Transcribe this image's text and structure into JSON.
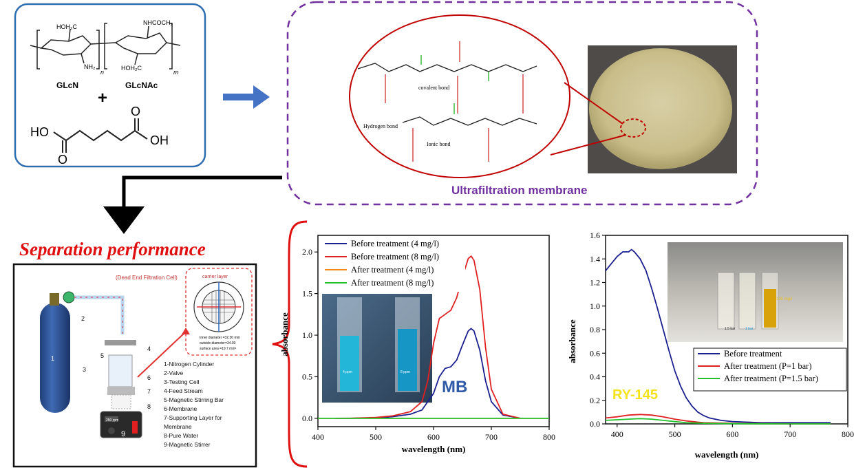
{
  "panels": {
    "reactants": {
      "glcn_label": "GLcN",
      "glcnac_label": "GLcNAc",
      "plus": "+",
      "hoh2c": "HOH₂C",
      "nh2": "NH₂",
      "nhcoch3": "NHCOCH₃",
      "hoh2c_b": "HOH₂C",
      "sub_n": "n",
      "sub_m": "m",
      "adipic_ho": "HO",
      "adipic_oh": "OH",
      "adipic_o1": "O",
      "adipic_o2": "O"
    },
    "membrane": {
      "title": "Ultrafiltration membrane",
      "covalent_bond": "covalent bond",
      "hydrogen_bond": "Hydrogen bond",
      "ionic_bond": "Ionic bond"
    },
    "separation": {
      "title": "Separation performance",
      "cell_title": "(Dead End Filtration Cell)",
      "carrier_layer": "carrier layer",
      "dims": [
        "Inner diameter =32.30 mm",
        "outside diameter=34.03",
        "surface area =19.7 mm²"
      ],
      "legend": [
        "1-Nitrogen Cylinder",
        "2-Valve",
        "3-Testing Cell",
        "4-Feed Stream",
        "5-Magnetic Stirring Bar",
        "6-Membrane",
        "7-Supporting Layer for",
        "Membrane",
        "8-Pure Water",
        "9-Magnetic Stirrer"
      ],
      "numbers": [
        "1",
        "2",
        "3",
        "4",
        "5",
        "6",
        "7",
        "8",
        "9"
      ],
      "stirrer_display": "250 rpm"
    }
  },
  "chart_data": [
    {
      "type": "line",
      "annotation": "MB",
      "photo_labels": [
        "4 ppm",
        "8 ppm"
      ],
      "xlabel": "wavelength (nm)",
      "ylabel": "absorbance",
      "xlim": [
        400,
        800
      ],
      "ylim": [
        -0.1,
        2.2
      ],
      "xticks": [
        400,
        500,
        600,
        700,
        800
      ],
      "yticks": [
        0.0,
        0.5,
        1.0,
        1.5,
        2.0
      ],
      "legend_position": "top-left",
      "series": [
        {
          "name": "Before treatment (4 mg/l)",
          "color": "#1a1f8f",
          "x": [
            430,
            460,
            500,
            530,
            560,
            580,
            600,
            610,
            620,
            630,
            640,
            650,
            660,
            665,
            670,
            680,
            690,
            700,
            720,
            750
          ],
          "y": [
            0,
            0,
            0.005,
            0.02,
            0.05,
            0.1,
            0.3,
            0.5,
            0.6,
            0.62,
            0.7,
            0.88,
            1.05,
            1.08,
            1.05,
            0.82,
            0.45,
            0.2,
            0.04,
            0
          ]
        },
        {
          "name": "Before treatment (8 mg/l)",
          "color": "#e02020",
          "x": [
            430,
            460,
            500,
            530,
            560,
            580,
            590,
            600,
            610,
            620,
            630,
            640,
            650,
            660,
            665,
            670,
            680,
            690,
            700,
            720,
            750
          ],
          "y": [
            0,
            0.002,
            0.01,
            0.03,
            0.08,
            0.2,
            0.45,
            0.9,
            1.2,
            1.25,
            1.3,
            1.45,
            1.7,
            1.92,
            1.95,
            1.9,
            1.55,
            0.85,
            0.35,
            0.05,
            0
          ]
        },
        {
          "name": "After treatment (4 mg/l)",
          "color": "#f08c1e",
          "x": [
            400,
            800
          ],
          "y": [
            0,
            0
          ]
        },
        {
          "name": "After treatment (8 mg/l)",
          "color": "#22c02a",
          "x": [
            400,
            800
          ],
          "y": [
            0,
            0
          ]
        }
      ]
    },
    {
      "type": "line",
      "annotation": "RY-145",
      "photo_labels": [
        "1.5 bar",
        "1 bar",
        "100 mg/l"
      ],
      "xlabel": "wavelength (nm)",
      "ylabel": "absorbance",
      "xlim": [
        380,
        800
      ],
      "ylim": [
        0,
        1.6
      ],
      "xticks": [
        400,
        500,
        600,
        700,
        800
      ],
      "yticks": [
        0.0,
        0.2,
        0.4,
        0.6,
        0.8,
        1.0,
        1.2,
        1.4,
        1.6
      ],
      "legend_position": "bottom-right",
      "series": [
        {
          "name": "Before treatment",
          "color": "#1a1f8f",
          "x": [
            380,
            390,
            400,
            410,
            420,
            425,
            430,
            440,
            450,
            460,
            470,
            480,
            490,
            500,
            510,
            520,
            530,
            540,
            550,
            560,
            580,
            600,
            650,
            700,
            770
          ],
          "y": [
            1.3,
            1.36,
            1.42,
            1.46,
            1.46,
            1.48,
            1.46,
            1.4,
            1.3,
            1.15,
            0.98,
            0.8,
            0.62,
            0.45,
            0.32,
            0.22,
            0.15,
            0.1,
            0.07,
            0.05,
            0.03,
            0.02,
            0.01,
            0.01,
            0.01
          ]
        },
        {
          "name": "After treatment (P=1 bar)",
          "color": "#e02020",
          "x": [
            380,
            400,
            420,
            440,
            460,
            480,
            500,
            520,
            550,
            600,
            700,
            770
          ],
          "y": [
            0.05,
            0.06,
            0.075,
            0.08,
            0.075,
            0.06,
            0.04,
            0.025,
            0.01,
            0.005,
            0,
            0
          ]
        },
        {
          "name": "After treatment (P=1.5 bar)",
          "color": "#22c02a",
          "x": [
            380,
            400,
            420,
            440,
            460,
            480,
            500,
            520,
            550,
            600,
            700,
            770
          ],
          "y": [
            0.03,
            0.035,
            0.04,
            0.045,
            0.04,
            0.03,
            0.02,
            0.01,
            0.005,
            0.002,
            0,
            0
          ]
        }
      ]
    }
  ]
}
